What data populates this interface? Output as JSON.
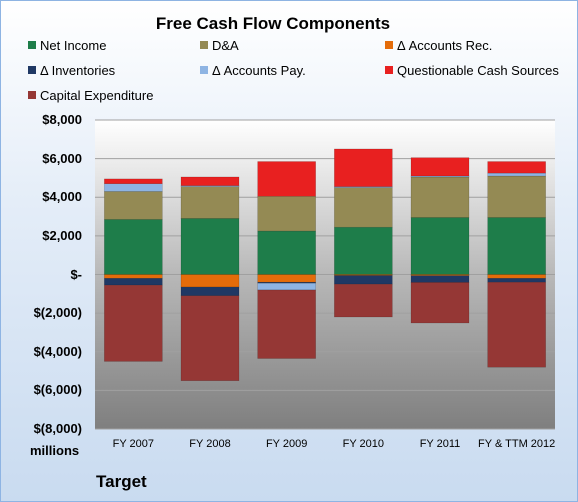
{
  "chart_data": {
    "type": "bar",
    "stacked": true,
    "title": "Free Cash Flow Components",
    "categories": [
      "FY 2007",
      "FY 2008",
      "FY 2009",
      "FY 2010",
      "FY 2011",
      "FY & TTM 2012"
    ],
    "y_tick_labels": [
      "$8,000",
      "$6,000",
      "$4,000",
      "$2,000",
      "$-",
      "$(2,000)",
      "$(4,000)",
      "$(6,000)",
      "$(8,000)"
    ],
    "units_label": "millions",
    "ylim": [
      -8000,
      8000
    ],
    "grid": true,
    "legend_position": "top",
    "series": [
      {
        "name": "Net Income",
        "color": "#1e7d4a",
        "values": [
          2850,
          2900,
          2250,
          2450,
          2950,
          2950
        ]
      },
      {
        "name": "D&A",
        "color": "#948a54",
        "values": [
          1450,
          1650,
          1800,
          2050,
          2100,
          2150
        ]
      },
      {
        "name": "Δ Accounts Rec.",
        "color": "#e46c0a",
        "values": [
          -200,
          -650,
          -400,
          -50,
          -60,
          -200
        ]
      },
      {
        "name": "Δ Inventories",
        "color": "#1f3864",
        "values": [
          -350,
          -450,
          -50,
          -450,
          -350,
          -200
        ]
      },
      {
        "name": "Δ Accounts Pay.",
        "color": "#8eb4e3",
        "values": [
          400,
          50,
          -350,
          50,
          50,
          150
        ]
      },
      {
        "name": "Questionable Cash Sources",
        "color": "#e82020",
        "values": [
          250,
          450,
          1800,
          1950,
          950,
          600
        ]
      },
      {
        "name": "Capital Expenditure",
        "color": "#953735",
        "values": [
          -3950,
          -4400,
          -3550,
          -1700,
          -2100,
          -4400
        ]
      }
    ]
  },
  "company": "Target"
}
